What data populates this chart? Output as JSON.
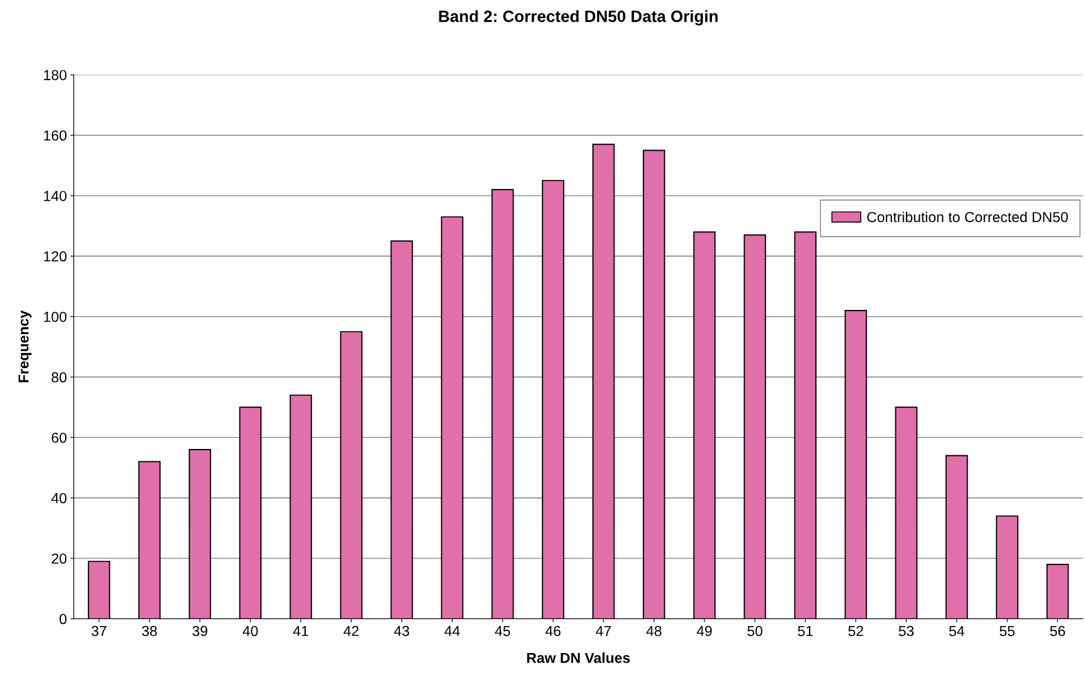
{
  "chart_data": {
    "type": "bar",
    "title": "Band 2: Corrected DN50 Data Origin",
    "xlabel": "Raw DN Values",
    "ylabel": "Frequency",
    "categories": [
      "37",
      "38",
      "39",
      "40",
      "41",
      "42",
      "43",
      "44",
      "45",
      "46",
      "47",
      "48",
      "49",
      "50",
      "51",
      "52",
      "53",
      "54",
      "55",
      "56"
    ],
    "series": [
      {
        "name": "Contribution to Corrected DN50",
        "color": "#e070aa",
        "values": [
          19,
          52,
          56,
          70,
          74,
          95,
          125,
          133,
          142,
          145,
          157,
          155,
          128,
          127,
          128,
          102,
          70,
          54,
          34,
          18
        ]
      }
    ],
    "ylim": [
      0,
      180
    ],
    "yticks": [
      0,
      20,
      40,
      60,
      80,
      100,
      120,
      140,
      160,
      180
    ],
    "grid": "y",
    "legend": "right"
  }
}
